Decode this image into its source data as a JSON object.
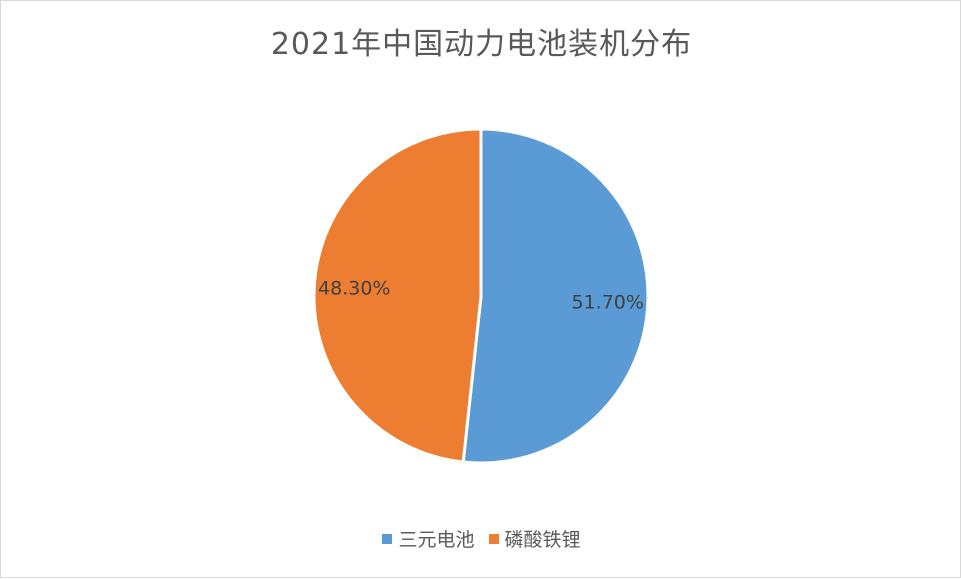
{
  "chart_data": {
    "type": "pie",
    "title": "2021年中国动力电池装机分布",
    "categories": [
      "三元电池",
      "磷酸铁锂"
    ],
    "values": [
      51.7,
      48.3
    ],
    "data_labels": [
      "51.70%",
      "48.30%"
    ],
    "colors": [
      "#5b9bd5",
      "#ed7d31"
    ],
    "legend_position": "bottom",
    "start_angle": "12 o'clock",
    "direction": "clockwise"
  }
}
